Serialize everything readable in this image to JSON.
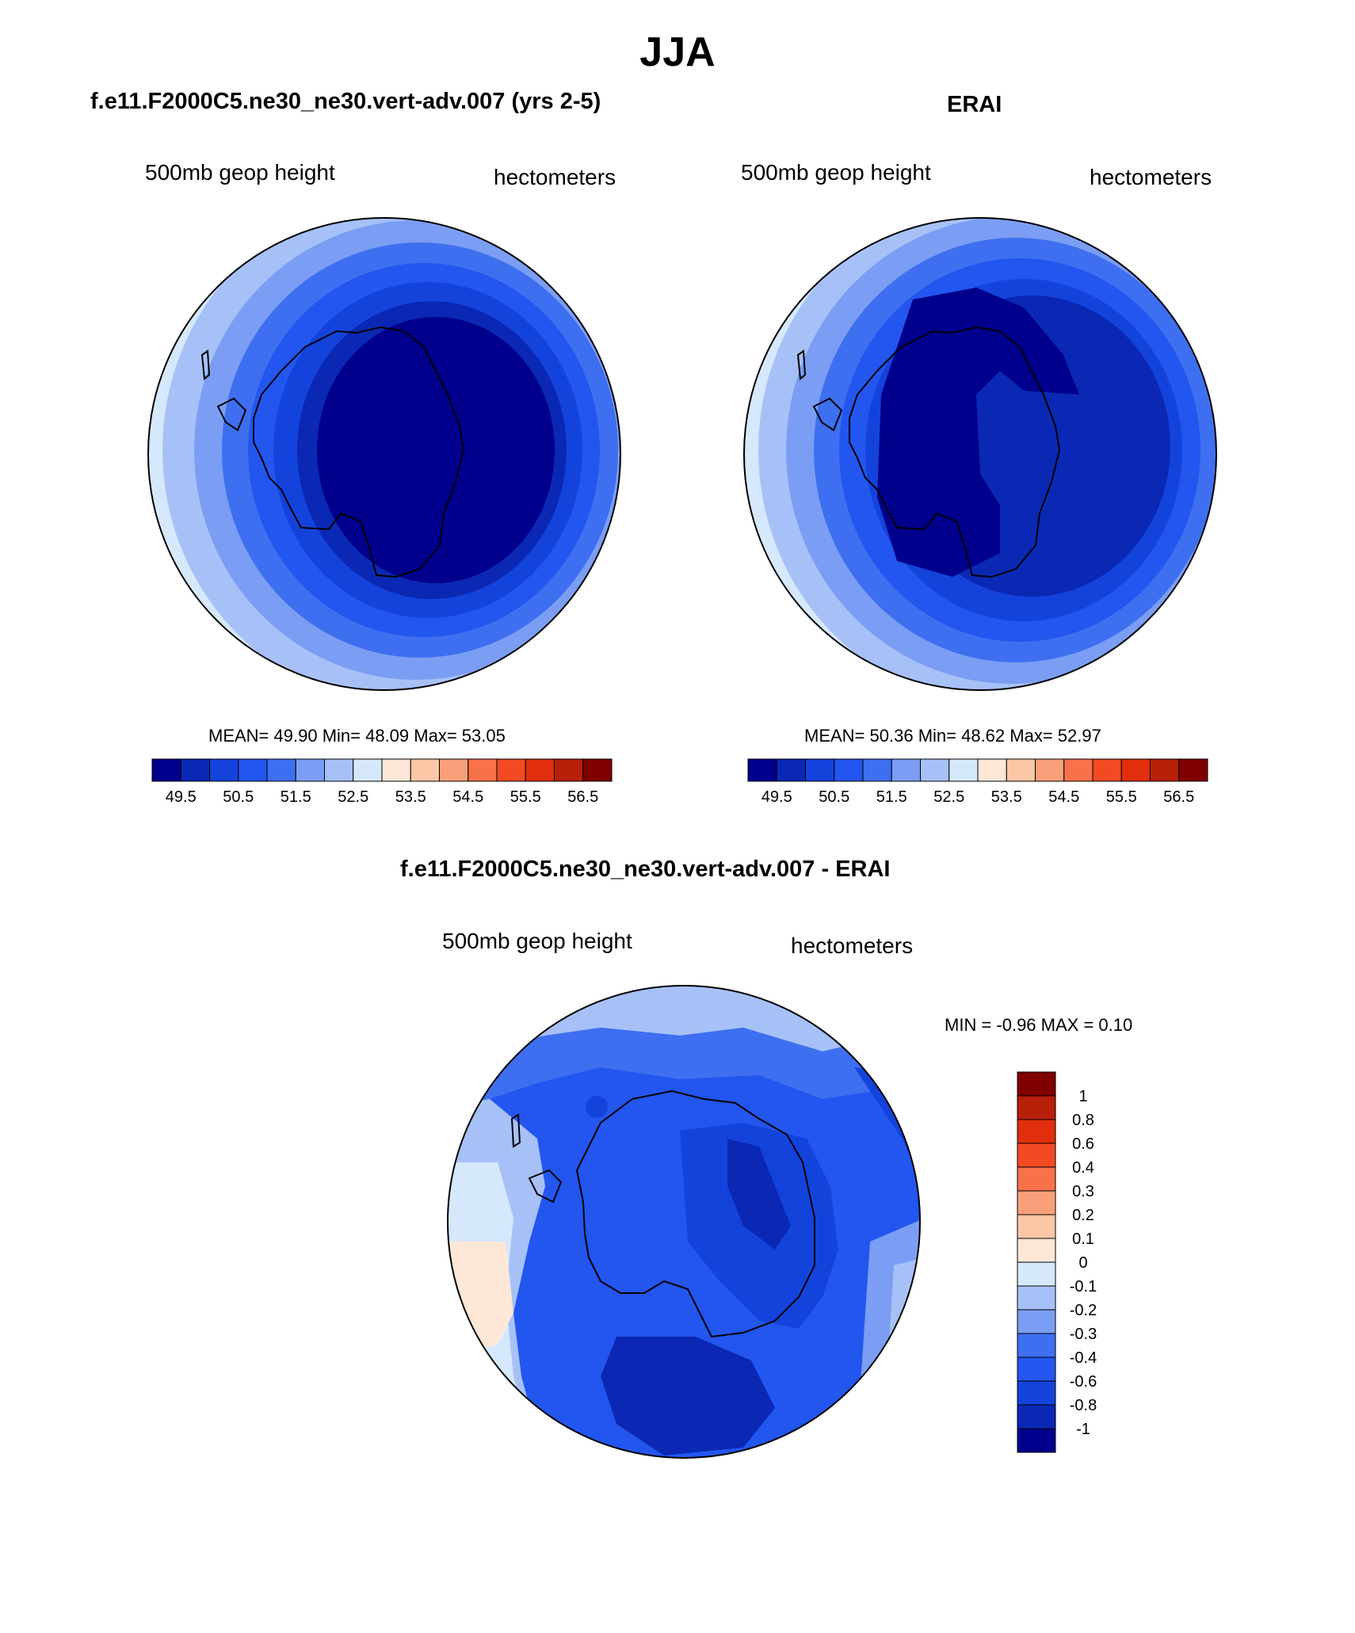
{
  "figure": {
    "title": "JJA",
    "colors": {
      "seq_palette": [
        "#00008c",
        "#0a28b4",
        "#1443dc",
        "#2256ef",
        "#3e6ff0",
        "#7b9ef4",
        "#a7c1f8",
        "#d6e8fc",
        "#fde7d7",
        "#fbc7a6",
        "#f9a07a",
        "#f7714b",
        "#f34a23",
        "#e12e0c",
        "#b8200a",
        "#800000"
      ],
      "diff_palette": [
        "#00008c",
        "#0a28b4",
        "#1443dc",
        "#2256ef",
        "#3e6ff0",
        "#7b9ef4",
        "#a7c1f8",
        "#d6e8fc",
        "#fde7d7",
        "#fbc7a6",
        "#f9a07a",
        "#f7714b",
        "#f34a23",
        "#e12e0c",
        "#b8200a",
        "#800000"
      ]
    }
  },
  "panels": [
    {
      "title": "f.e11.F2000C5.ne30_ne30.vert-adv.007 (yrs 2-5)",
      "left_label": "500mb geop height",
      "right_label": "hectometers",
      "stats": "MEAN=  49.90  Min=  48.09  Max=  53.05",
      "colorbar_ticks": [
        "49.5",
        "50.5",
        "51.5",
        "52.5",
        "53.5",
        "54.5",
        "55.5",
        "56.5"
      ]
    },
    {
      "title": "ERAI",
      "left_label": "500mb geop height",
      "right_label": "hectometers",
      "stats": "MEAN=  50.36  Min=  48.62  Max=  52.97",
      "colorbar_ticks": [
        "49.5",
        "50.5",
        "51.5",
        "52.5",
        "53.5",
        "54.5",
        "55.5",
        "56.5"
      ]
    },
    {
      "title": "f.e11.F2000C5.ne30_ne30.vert-adv.007 - ERAI",
      "left_label": "500mb geop height",
      "right_label": "hectometers",
      "stats": "MIN =  -0.96 MAX =   0.10",
      "colorbar_ticks": [
        "1",
        "0.8",
        "0.6",
        "0.4",
        "0.3",
        "0.2",
        "0.1",
        "0",
        "-0.1",
        "-0.2",
        "-0.3",
        "-0.4",
        "-0.6",
        "-0.8",
        "-1"
      ]
    }
  ]
}
